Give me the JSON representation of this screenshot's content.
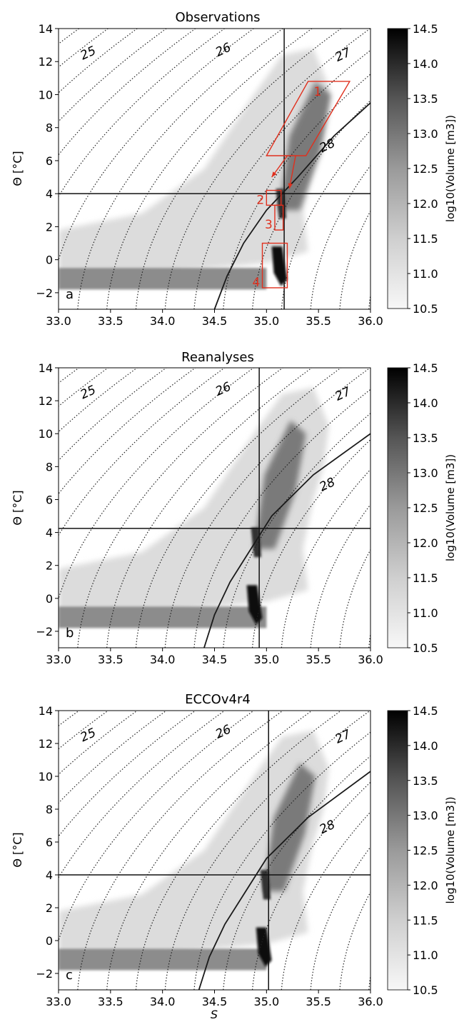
{
  "chart_data": [
    {
      "type": "heatmap",
      "title": "Observations",
      "panel_letter": "a",
      "xlim": [
        33.0,
        36.0
      ],
      "ylim": [
        -3,
        14
      ],
      "x_ticks": [
        "33.0",
        "33.5",
        "34.0",
        "34.5",
        "35.0",
        "35.5",
        "36.0"
      ],
      "y_ticks": [
        "-2",
        "0",
        "2",
        "4",
        "6",
        "8",
        "10",
        "12",
        "14"
      ],
      "ylabel": "Θ [°C]",
      "xlabel": "",
      "colorbar": {
        "label": "log10(Volume [m3])",
        "range": [
          10.5,
          14.5
        ],
        "ticks": [
          "10.5",
          "11.0",
          "11.5",
          "12.0",
          "12.5",
          "13.0",
          "13.5",
          "14.0",
          "14.5"
        ],
        "cmap": "Greys"
      },
      "isopycnal_labels": [
        "25",
        "26",
        "27",
        "28"
      ],
      "vline_S": 35.17,
      "hline_theta": 4.0,
      "freezing_curve": [
        [
          34.5,
          -3
        ],
        [
          34.62,
          -1
        ],
        [
          34.78,
          1
        ],
        [
          35.0,
          3
        ],
        [
          35.3,
          5
        ],
        [
          35.65,
          7.5
        ],
        [
          36.0,
          9.5
        ]
      ],
      "grid": false,
      "regions": [
        {
          "label": "1",
          "polygon": [
            [
              35.0,
              6.3
            ],
            [
              35.4,
              10.8
            ],
            [
              35.8,
              10.8
            ],
            [
              35.38,
              6.3
            ]
          ]
        },
        {
          "label": "2",
          "rect": [
            35.0,
            3.3,
            35.14,
            4.2
          ]
        },
        {
          "label": "3",
          "rect": [
            35.08,
            1.8,
            35.16,
            3.3
          ]
        },
        {
          "label": "4",
          "rect": [
            34.96,
            -1.7,
            35.2,
            1.0
          ]
        }
      ],
      "arrows": [
        [
          [
            35.2,
            6.3
          ],
          [
            35.05,
            5.0
          ]
        ],
        [
          [
            35.28,
            6.3
          ],
          [
            35.22,
            4.3
          ]
        ]
      ]
    },
    {
      "type": "heatmap",
      "title": "Reanalyses",
      "panel_letter": "b",
      "xlim": [
        33.0,
        36.0
      ],
      "ylim": [
        -3,
        14
      ],
      "x_ticks": [
        "33.0",
        "33.5",
        "34.0",
        "34.5",
        "35.0",
        "35.5",
        "36.0"
      ],
      "y_ticks": [
        "-2",
        "0",
        "2",
        "4",
        "6",
        "8",
        "10",
        "12",
        "14"
      ],
      "ylabel": "Θ [°C]",
      "xlabel": "",
      "colorbar": {
        "label": "log10(Volume [m3])",
        "range": [
          10.5,
          14.5
        ],
        "ticks": [
          "10.5",
          "11.0",
          "11.5",
          "12.0",
          "12.5",
          "13.0",
          "13.5",
          "14.0",
          "14.5"
        ],
        "cmap": "Greys"
      },
      "isopycnal_labels": [
        "25",
        "26",
        "27",
        "28"
      ],
      "vline_S": 34.93,
      "hline_theta": 4.25,
      "freezing_curve": [
        [
          34.4,
          -3
        ],
        [
          34.5,
          -1
        ],
        [
          34.65,
          1
        ],
        [
          34.85,
          3
        ],
        [
          35.05,
          5
        ],
        [
          35.45,
          7.5
        ],
        [
          36.0,
          10.0
        ]
      ],
      "grid": false
    },
    {
      "type": "heatmap",
      "title": "ECCOv4r4",
      "panel_letter": "c",
      "xlim": [
        33.0,
        36.0
      ],
      "ylim": [
        -3,
        14
      ],
      "x_ticks": [
        "33.0",
        "33.5",
        "34.0",
        "34.5",
        "35.0",
        "35.5",
        "36.0"
      ],
      "y_ticks": [
        "-2",
        "0",
        "2",
        "4",
        "6",
        "8",
        "10",
        "12",
        "14"
      ],
      "ylabel": "Θ [°C]",
      "xlabel": "S",
      "colorbar": {
        "label": "log10(Volume [m3])",
        "range": [
          10.5,
          14.5
        ],
        "ticks": [
          "10.5",
          "11.0",
          "11.5",
          "12.0",
          "12.5",
          "13.0",
          "13.5",
          "14.0",
          "14.5"
        ],
        "cmap": "Greys"
      },
      "isopycnal_labels": [
        "25",
        "26",
        "27",
        "28"
      ],
      "vline_S": 35.02,
      "hline_theta": 4.0,
      "freezing_curve": [
        [
          34.35,
          -3
        ],
        [
          34.45,
          -1
        ],
        [
          34.6,
          1
        ],
        [
          34.8,
          3
        ],
        [
          35.0,
          5
        ],
        [
          35.4,
          7.5
        ],
        [
          36.0,
          10.3
        ]
      ],
      "grid": false
    }
  ],
  "colors": {
    "axis": "#000000",
    "regions": "#e0301e",
    "curve": "#1a1a1a"
  }
}
